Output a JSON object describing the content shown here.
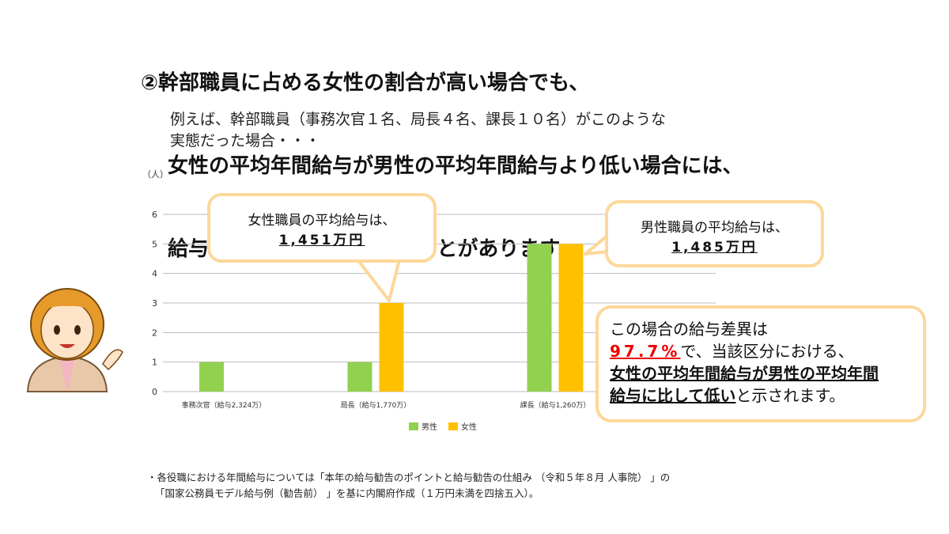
{
  "title": {
    "line1": "②幹部職員に占める女性の割合が高い場合でも、",
    "line2": "女性の平均年間給与が男性の平均年間給与より低い場合には、",
    "line3": "給与差異が100%を下回ることがあります。"
  },
  "subtitle": {
    "line1": "例えば、幹部職員（事務次官１名、局長４名、課長１０名）がこのような",
    "line2": "実態だった場合・・・"
  },
  "chart_data": {
    "type": "bar",
    "ylabel": "（人）",
    "ylim": [
      0,
      6
    ],
    "yticks": [
      "0",
      "1",
      "2",
      "3",
      "4",
      "5",
      "6"
    ],
    "grid": true,
    "categories": [
      "事務次官（給与2,324万）",
      "局長（給与1,770万）",
      "課長（給与1,260万）"
    ],
    "series": [
      {
        "name": "男性",
        "values": [
          1,
          1,
          5
        ],
        "color": "#92d050"
      },
      {
        "name": "女性",
        "values": [
          0,
          3,
          5
        ],
        "color": "#ffc000"
      }
    ],
    "legend": "bottom"
  },
  "callouts": {
    "female": {
      "line1": "女性職員の平均給与は、",
      "line2": "1,451万円"
    },
    "male": {
      "line1": "男性職員の平均給与は、",
      "line2": "1,485万円"
    },
    "result": {
      "line1": "この場合の給与差異は",
      "pct": "97.7%",
      "line2_rest": "で、当該区分における、",
      "bold1": "女性の平均年間給与が男性の平均年間",
      "bold2": "給与に比して低い",
      "rest": "と示されます。"
    }
  },
  "note": {
    "line1": "・各役職における年間給与については「本年の給与勧告のポイントと給与勧告の仕組み （令和５年８月 人事院） 」の",
    "line2": "「国家公務員モデル給与例（勧告前） 」を基に内閣府作成（１万円未満を四捨五入）。"
  },
  "colors": {
    "callout_border": "#fdd89a",
    "highlight": "#ee0000"
  }
}
